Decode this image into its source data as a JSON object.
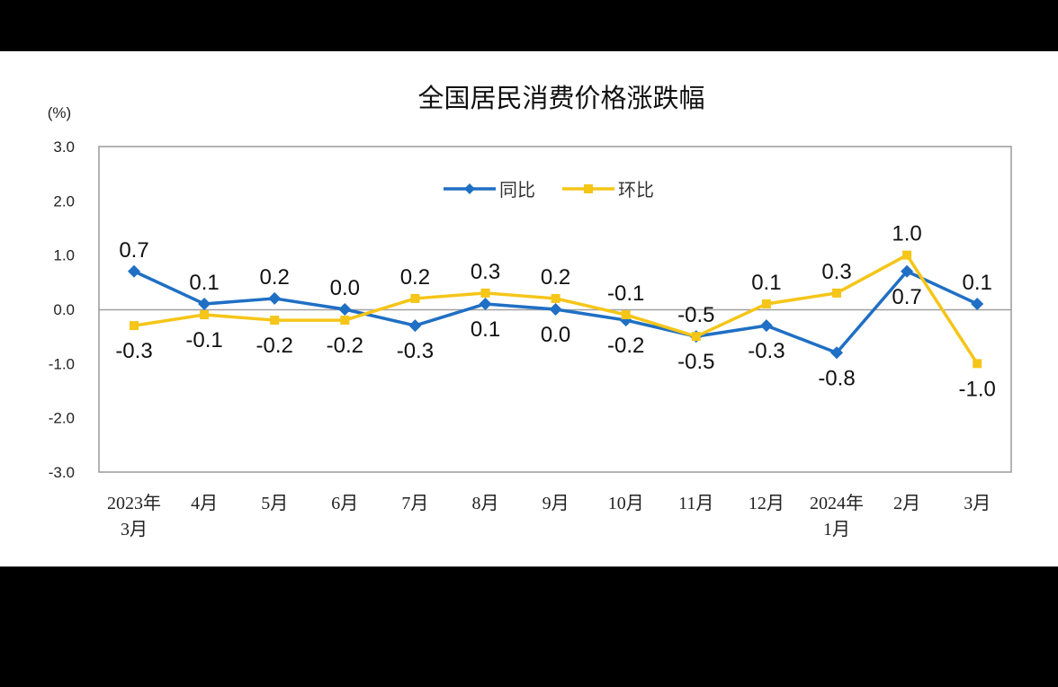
{
  "chart_data": {
    "type": "line",
    "title": "全国居民消费价格涨跌幅",
    "unit_label": "(%)",
    "categories": [
      [
        "2023年",
        "3月"
      ],
      [
        "4月"
      ],
      [
        "5月"
      ],
      [
        "6月"
      ],
      [
        "7月"
      ],
      [
        "8月"
      ],
      [
        "9月"
      ],
      [
        "10月"
      ],
      [
        "11月"
      ],
      [
        "12月"
      ],
      [
        "2024年",
        "1月"
      ],
      [
        "2月"
      ],
      [
        "3月"
      ]
    ],
    "series": [
      {
        "name": "同比",
        "color": "#1f6fc4",
        "marker": "diamond",
        "values": [
          0.7,
          0.1,
          0.2,
          0.0,
          -0.3,
          0.1,
          0.0,
          -0.2,
          -0.5,
          -0.3,
          -0.8,
          0.7,
          0.1
        ],
        "labels": [
          "0.7",
          "0.1",
          "0.2",
          "0.0",
          "-0.3",
          "0.1",
          "0.0",
          "-0.2",
          "-0.5",
          "-0.3",
          "-0.8",
          "0.7",
          "0.1"
        ]
      },
      {
        "name": "环比",
        "color": "#f5c518",
        "marker": "square",
        "values": [
          -0.3,
          -0.1,
          -0.2,
          -0.2,
          0.2,
          0.3,
          0.2,
          -0.1,
          -0.5,
          0.1,
          0.3,
          1.0,
          -1.0
        ],
        "labels": [
          "-0.3",
          "-0.1",
          "-0.2",
          "-0.2",
          "0.2",
          "0.3",
          "0.2",
          "-0.1",
          "-0.5",
          "0.1",
          "0.3",
          "1.0",
          "-1.0"
        ]
      }
    ],
    "ylim": [
      -3.0,
      3.0
    ],
    "yticks": [
      "3.0",
      "2.0",
      "1.0",
      "0.0",
      "-1.0",
      "-2.0",
      "-3.0"
    ],
    "grid": false,
    "legend_position": "top-center"
  }
}
